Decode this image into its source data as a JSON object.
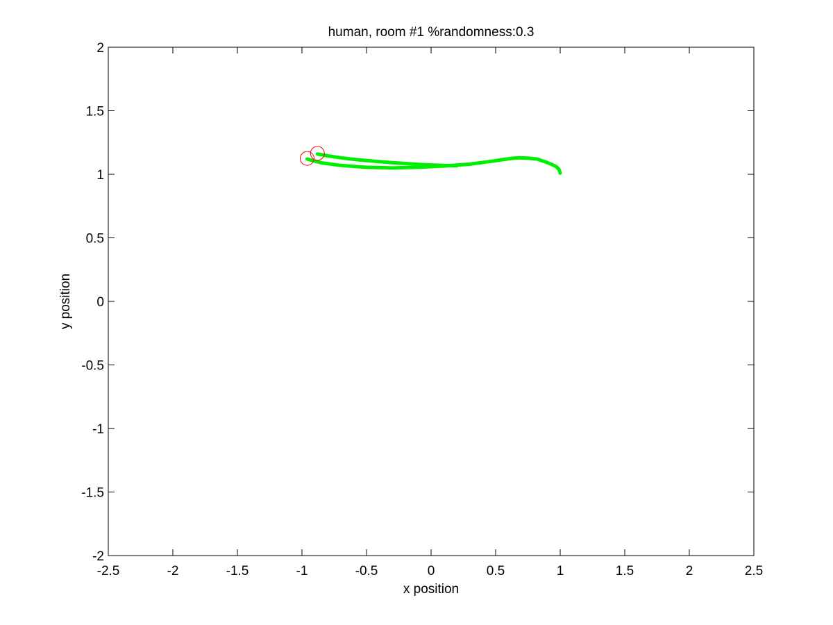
{
  "chart_data": {
    "type": "line",
    "title": "human, room #1 %randomness:0.3",
    "xlabel": "x position",
    "ylabel": "y position",
    "xlim": [
      -2.5,
      2.5
    ],
    "ylim": [
      -2,
      2
    ],
    "xticks": [
      -2.5,
      -2,
      -1.5,
      -1,
      -0.5,
      0,
      0.5,
      1,
      1.5,
      2,
      2.5
    ],
    "xtick_labels": [
      "-2.5",
      "-2",
      "-1.5",
      "-1",
      "-0.5",
      "0",
      "0.5",
      "1",
      "1.5",
      "2",
      "2.5"
    ],
    "yticks": [
      -2,
      -1.5,
      -1,
      -0.5,
      0,
      0.5,
      1,
      1.5,
      2
    ],
    "ytick_labels": [
      "-2",
      "-1.5",
      "-1",
      "-0.5",
      "0",
      "0.5",
      "1",
      "1.5",
      "2"
    ],
    "grid": false,
    "series": [
      {
        "color": "#00ee00",
        "x": [
          -0.96,
          -0.85,
          -0.7,
          -0.5,
          -0.3,
          -0.1,
          0.1,
          0.3,
          0.45,
          0.55,
          0.62,
          0.68,
          0.75,
          0.82,
          0.88,
          0.93,
          0.97,
          0.99,
          1.0
        ],
        "y": [
          1.12,
          1.09,
          1.07,
          1.055,
          1.05,
          1.055,
          1.065,
          1.08,
          1.1,
          1.115,
          1.125,
          1.13,
          1.127,
          1.12,
          1.1,
          1.08,
          1.06,
          1.04,
          1.01
        ]
      },
      {
        "color": "#00ee00",
        "x": [
          -0.88,
          -0.8,
          -0.7,
          -0.6,
          -0.5,
          -0.4,
          -0.3,
          -0.2,
          -0.1,
          0.0,
          0.1,
          0.2
        ],
        "y": [
          1.16,
          1.145,
          1.13,
          1.118,
          1.108,
          1.1,
          1.092,
          1.085,
          1.078,
          1.073,
          1.07,
          1.068
        ]
      }
    ],
    "markers": [
      {
        "x": -0.96,
        "y": 1.125,
        "shape": "circle",
        "color": "#ff0000"
      },
      {
        "x": -0.88,
        "y": 1.165,
        "shape": "circle",
        "color": "#ff0000"
      }
    ]
  }
}
